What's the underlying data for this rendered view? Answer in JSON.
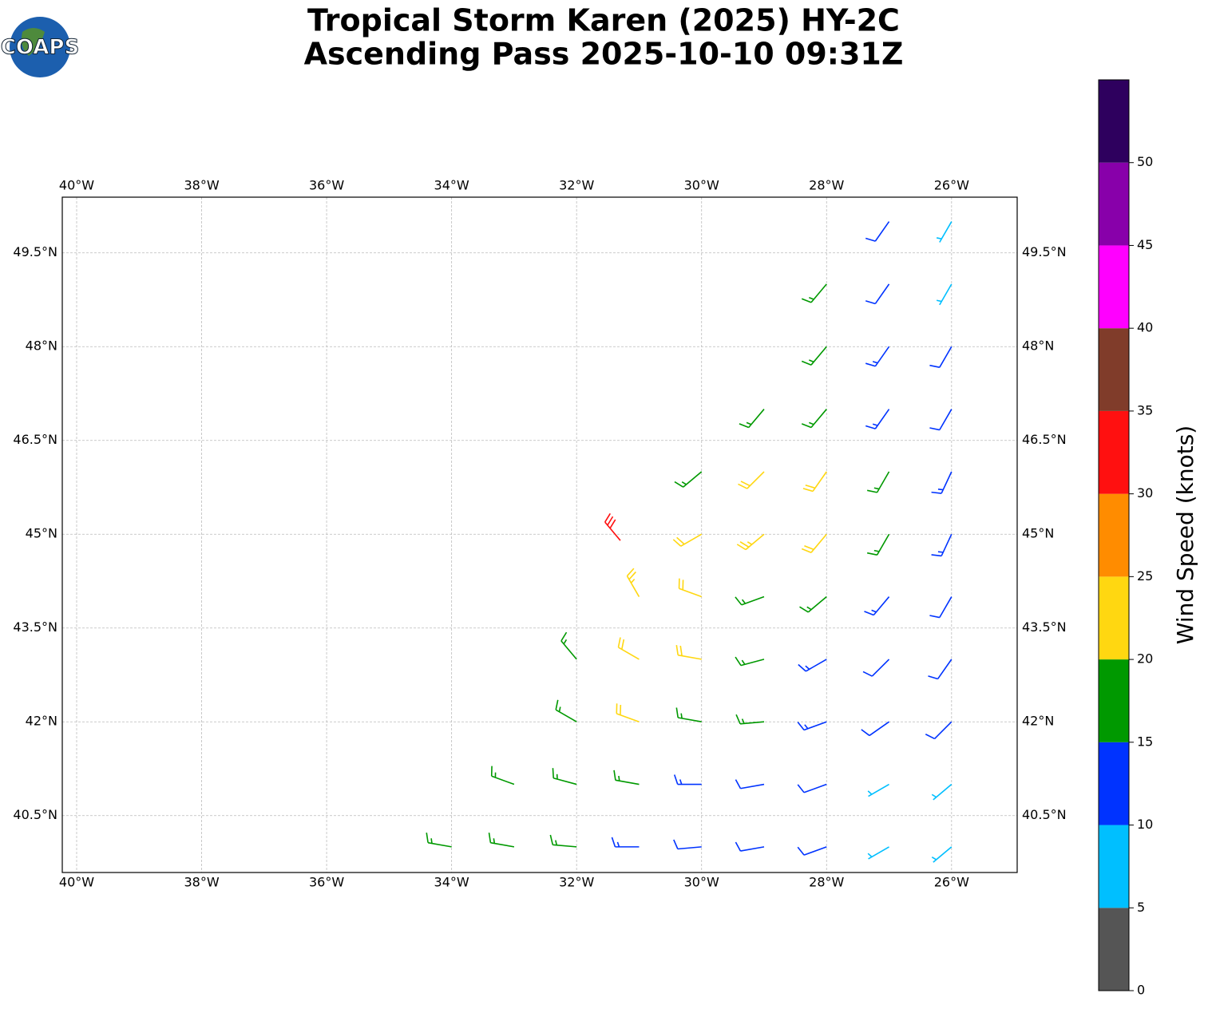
{
  "chart_data": {
    "type": "barbs",
    "logo": "COAPS",
    "title": "Tropical Storm Karen (2025) HY-2C",
    "subtitle": "Ascending Pass 2025-10-10 09:31Z",
    "colorbar_label": "Wind Speed (knots)",
    "xlim": [
      -40.23,
      -24.95
    ],
    "ylim": [
      39.59,
      50.39
    ],
    "xticks": [
      {
        "value": -40,
        "label": "40°W"
      },
      {
        "value": -38,
        "label": "38°W"
      },
      {
        "value": -36,
        "label": "36°W"
      },
      {
        "value": -34,
        "label": "34°W"
      },
      {
        "value": -32,
        "label": "32°W"
      },
      {
        "value": -30,
        "label": "30°W"
      },
      {
        "value": -28,
        "label": "28°W"
      },
      {
        "value": -26,
        "label": "26°W"
      }
    ],
    "yticks": [
      {
        "value": 40.5,
        "label": "40.5°N"
      },
      {
        "value": 42,
        "label": "42°N"
      },
      {
        "value": 43.5,
        "label": "43.5°N"
      },
      {
        "value": 45,
        "label": "45°N"
      },
      {
        "value": 46.5,
        "label": "46.5°N"
      },
      {
        "value": 48,
        "label": "48°N"
      },
      {
        "value": 49.5,
        "label": "49.5°N"
      }
    ],
    "grid": true,
    "clim": [
      0,
      55
    ],
    "cticks": [
      0,
      5,
      10,
      15,
      20,
      25,
      30,
      35,
      40,
      45,
      50
    ],
    "colors": [
      "#555555",
      "#00bfff",
      "#0033ff",
      "#009900",
      "#ffd711",
      "#ff8c00",
      "#ff1010",
      "#803c2a",
      "#ff00ff",
      "#8800aa",
      "#2e005e"
    ],
    "barbs": {
      "lon": [
        -34,
        -33,
        -32,
        -31,
        -30,
        -29,
        -28,
        -27,
        -26,
        -33,
        -32,
        -31,
        -30,
        -29,
        -28,
        -27,
        -26,
        -32,
        -31,
        -30,
        -29,
        -28,
        -27,
        -26,
        -32,
        -31,
        -30,
        -29,
        -28,
        -27,
        -26,
        -31,
        -30,
        -29,
        -28,
        -27,
        -26,
        -31.3,
        -30,
        -29,
        -28,
        -27,
        -26,
        -30,
        -29,
        -28,
        -27,
        -26,
        -29,
        -28,
        -27,
        -26,
        -28,
        -27,
        -26,
        -28,
        -27,
        -26,
        -27,
        -26
      ],
      "lat": [
        40,
        40,
        40,
        40,
        40,
        40,
        40,
        40,
        40,
        41,
        41,
        41,
        41,
        41,
        41,
        41,
        41,
        42,
        42,
        42,
        42,
        42,
        42,
        42,
        43,
        43,
        43,
        43,
        43,
        43,
        43,
        44,
        44,
        44,
        44,
        44,
        44,
        44.9,
        45,
        45,
        45,
        45,
        45,
        46,
        46,
        46,
        46,
        46,
        47,
        47,
        47,
        47,
        48,
        48,
        48,
        49,
        49,
        49,
        50,
        50
      ],
      "speed": [
        17,
        16,
        15,
        13,
        12,
        12,
        10,
        8,
        7,
        17,
        17,
        16,
        14,
        12,
        11,
        9,
        8,
        18,
        22,
        19,
        15,
        13,
        12,
        10,
        17,
        22,
        21,
        17,
        14,
        12,
        11,
        23,
        22,
        18,
        15,
        13,
        12,
        31,
        22,
        23,
        21,
        17,
        13,
        18,
        21,
        22,
        18,
        13,
        18,
        17,
        14,
        12,
        17,
        13,
        12,
        16,
        12,
        9,
        11,
        8
      ],
      "direction": [
        280,
        280,
        275,
        270,
        265,
        260,
        250,
        240,
        230,
        290,
        285,
        280,
        270,
        260,
        250,
        240,
        230,
        300,
        290,
        280,
        265,
        250,
        235,
        225,
        320,
        300,
        280,
        255,
        240,
        225,
        215,
        330,
        290,
        250,
        230,
        220,
        210,
        320,
        240,
        230,
        220,
        210,
        205,
        230,
        225,
        215,
        210,
        205,
        220,
        220,
        215,
        210,
        220,
        215,
        210,
        220,
        215,
        210,
        215,
        210
      ]
    }
  }
}
